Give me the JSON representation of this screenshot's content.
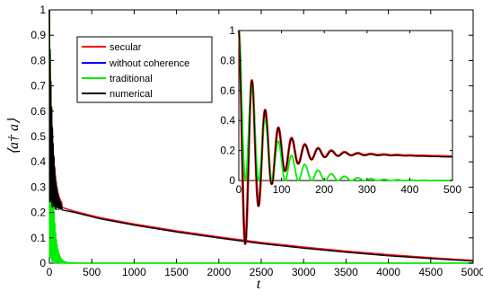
{
  "chart_data": [
    {
      "type": "line",
      "xlabel": "t",
      "ylabel": "⟨a† a⟩",
      "xlim": [
        0,
        5000
      ],
      "ylim": [
        0,
        1
      ],
      "xticks": [
        0,
        500,
        1000,
        1500,
        2000,
        2500,
        3000,
        3500,
        4000,
        4500,
        5000
      ],
      "yticks": [
        0,
        0.1,
        0.2,
        0.3,
        0.4,
        0.5,
        0.6,
        0.7,
        0.8,
        0.9,
        1
      ],
      "ytick_labels": [
        "0",
        "0.1",
        "0.2",
        "0.3",
        "0.4",
        "0.5",
        "0.6",
        "0.7",
        "0.8",
        "0.9",
        "1"
      ],
      "legend_position": "top-left",
      "series": [
        {
          "name": "secular",
          "color": "#ff0000",
          "x": [
            0,
            150,
            300,
            600,
            1000,
            1500,
            2000,
            2500,
            3000,
            3500,
            4000,
            4500,
            5000
          ],
          "y": [
            1.0,
            0.22,
            0.205,
            0.18,
            0.155,
            0.128,
            0.104,
            0.082,
            0.064,
            0.048,
            0.034,
            0.022,
            0.011
          ]
        },
        {
          "name": "without coherence",
          "color": "#0000ff",
          "x": [
            0,
            150,
            300,
            600,
            1000,
            1500,
            2000,
            2500,
            3000,
            3500,
            4000,
            4500,
            5000
          ],
          "y": [
            1.0,
            0.22,
            0.203,
            0.178,
            0.152,
            0.125,
            0.101,
            0.079,
            0.061,
            0.045,
            0.031,
            0.019,
            0.009
          ]
        },
        {
          "name": "traditional",
          "color": "#00ee00",
          "x": [
            0,
            50,
            100,
            150,
            200,
            300,
            400,
            500,
            5000
          ],
          "y": [
            1.0,
            0.55,
            0.25,
            0.1,
            0.04,
            0.008,
            0.002,
            0.0,
            0.0
          ]
        },
        {
          "name": "numerical",
          "color": "#000000",
          "x": [
            0,
            150,
            300,
            600,
            1000,
            1500,
            2000,
            2500,
            3000,
            3500,
            4000,
            4500,
            5000
          ],
          "y": [
            1.0,
            0.21,
            0.2,
            0.175,
            0.15,
            0.123,
            0.099,
            0.077,
            0.059,
            0.043,
            0.029,
            0.018,
            0.008
          ]
        }
      ]
    },
    {
      "type": "line",
      "inset": true,
      "xlim": [
        0,
        500
      ],
      "ylim": [
        0,
        1
      ],
      "xticks": [
        0,
        100,
        200,
        300,
        400,
        500
      ],
      "yticks": [
        0,
        0.2,
        0.4,
        0.6,
        0.8,
        1
      ],
      "ytick_labels": [
        "0",
        "0.2",
        "0.4",
        "0.6",
        "0.8",
        "1"
      ],
      "series": [
        {
          "name": "secular",
          "color": "#ff0000",
          "x": [
            0,
            500
          ],
          "y": [
            1.0,
            0.18
          ]
        },
        {
          "name": "traditional",
          "color": "#00ee00",
          "x": [
            0,
            500
          ],
          "y": [
            1.0,
            0.0
          ]
        },
        {
          "name": "numerical",
          "color": "#000000",
          "x": [
            0,
            500
          ],
          "y": [
            1.0,
            0.178
          ]
        }
      ]
    }
  ]
}
